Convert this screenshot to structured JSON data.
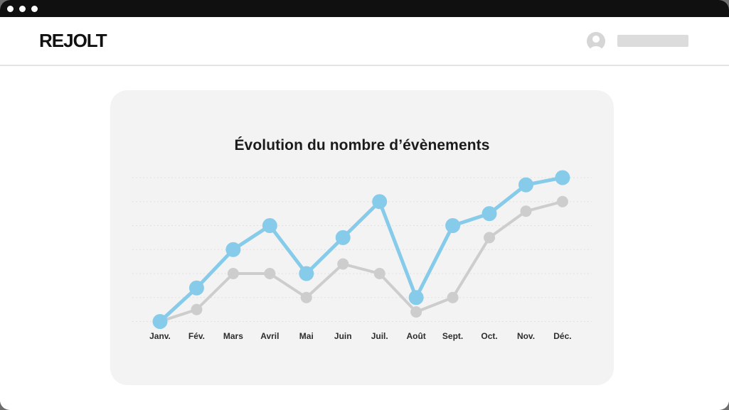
{
  "titlebar": {
    "window_controls_count": 3
  },
  "header": {
    "logo": "REJOLT"
  },
  "chart_data": {
    "type": "line",
    "title": "Évolution du nombre d’évènements",
    "categories": [
      "Janv.",
      "Fév.",
      "Mars",
      "Avril",
      "Mai",
      "Juin",
      "Juil.",
      "Août",
      "Sept.",
      "Oct.",
      "Nov.",
      "Déc."
    ],
    "series": [
      {
        "id": "primary-blue",
        "color": "#86CBE9",
        "line_width": 5,
        "point_radius": 10.5,
        "values": [
          0,
          1.4,
          3,
          4,
          2,
          3.5,
          5,
          1,
          4,
          4.5,
          5.7,
          6
        ]
      },
      {
        "id": "secondary-gray",
        "color": "#CDCDCD",
        "line_width": 4,
        "point_radius": 8,
        "values": [
          0,
          0.5,
          2,
          2,
          1,
          2.4,
          2,
          0.4,
          1,
          3.5,
          4.6,
          5
        ]
      }
    ],
    "xlabel": "",
    "ylabel": "",
    "ylim": [
      0,
      6
    ],
    "gridline_count": 7,
    "grid_style": "dashed",
    "grid_color": "#e1e1e1",
    "legend_position": "none"
  },
  "colors": {
    "accent_blue": "#86CBE9",
    "line_gray": "#CDCDCD",
    "card_bg": "#F3F3F3",
    "topbar": "#101010",
    "backdrop": "#6E6E6E"
  }
}
